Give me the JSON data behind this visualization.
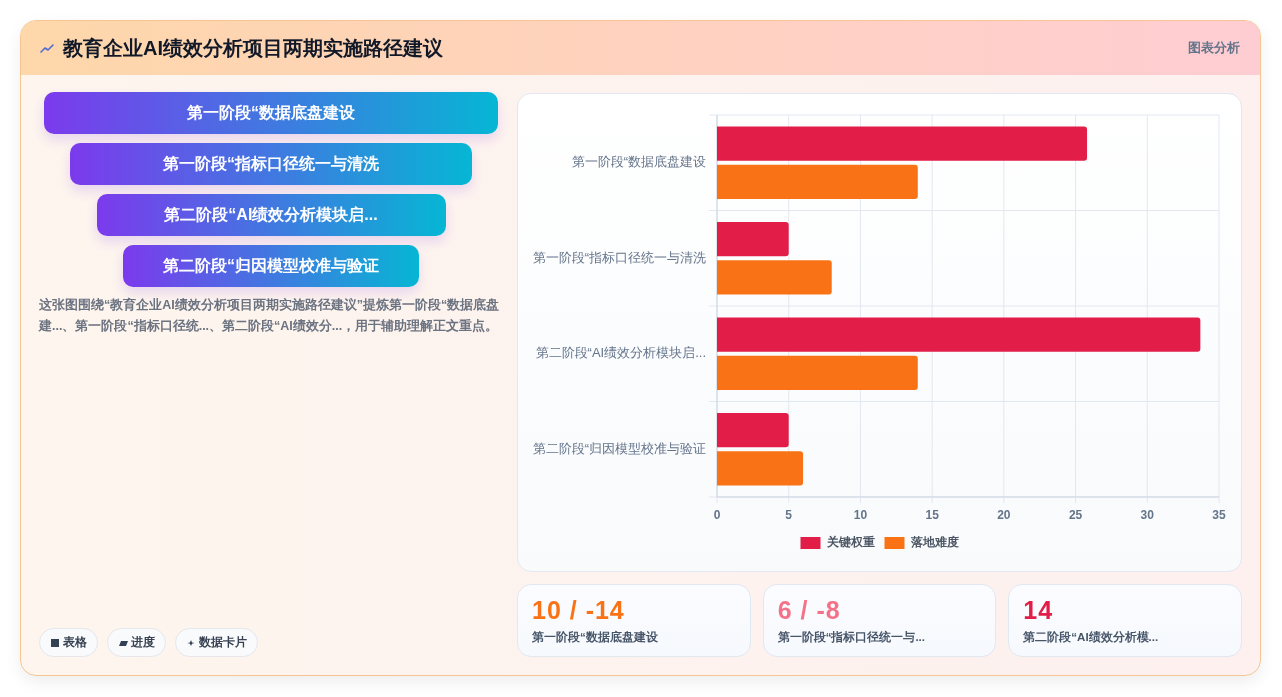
{
  "chart_data": [
    {
      "type": "other",
      "title": "教育企业AI绩效分析项目两期实施路径建议",
      "subtitle": "图表分析",
      "categories": [
        "第一阶段“数据底盘建设",
        "第一阶段“指标口径统一与清洗",
        "第二阶段“AI绩效分析模块启...",
        "第二阶段“归因模型校准与验证"
      ],
      "annotations": [
        "这张图围绕“教育企业AI绩效分析项目两期实施路径建议”提炼第一阶段“数据底盘建...、第一阶段“指标口径统...、第二阶段“AI绩效分...，用于辅助理解正文重点。",
        "表格",
        "进度",
        "数据卡片"
      ]
    },
    {
      "type": "bar",
      "orientation": "horizontal",
      "categories": [
        "第一阶段“数据底盘建设",
        "第一阶段“指标口径统一与清洗",
        "第二阶段“AI绩效分析模块启...",
        "第二阶段“归因模型校准与验证"
      ],
      "series": [
        {
          "name": "关键权重",
          "color": "#e11d48",
          "values": [
            25.8,
            5,
            33.7,
            5
          ]
        },
        {
          "name": "落地难度",
          "color": "#f97316",
          "values": [
            14,
            8,
            14,
            6
          ]
        }
      ],
      "xlim": [
        0,
        35
      ],
      "xticks": [
        0,
        5,
        10,
        15,
        20,
        25,
        30,
        35
      ],
      "grid": true,
      "legend": "bottom"
    },
    {
      "type": "other",
      "categories": [
        "第一阶段“数据底盘建设",
        "第一阶段“指标口径统一与...",
        "第二阶段“AI绩效分析模..."
      ],
      "value_labels": [
        "10 / -14",
        "6 / -8",
        "14"
      ]
    }
  ]
}
